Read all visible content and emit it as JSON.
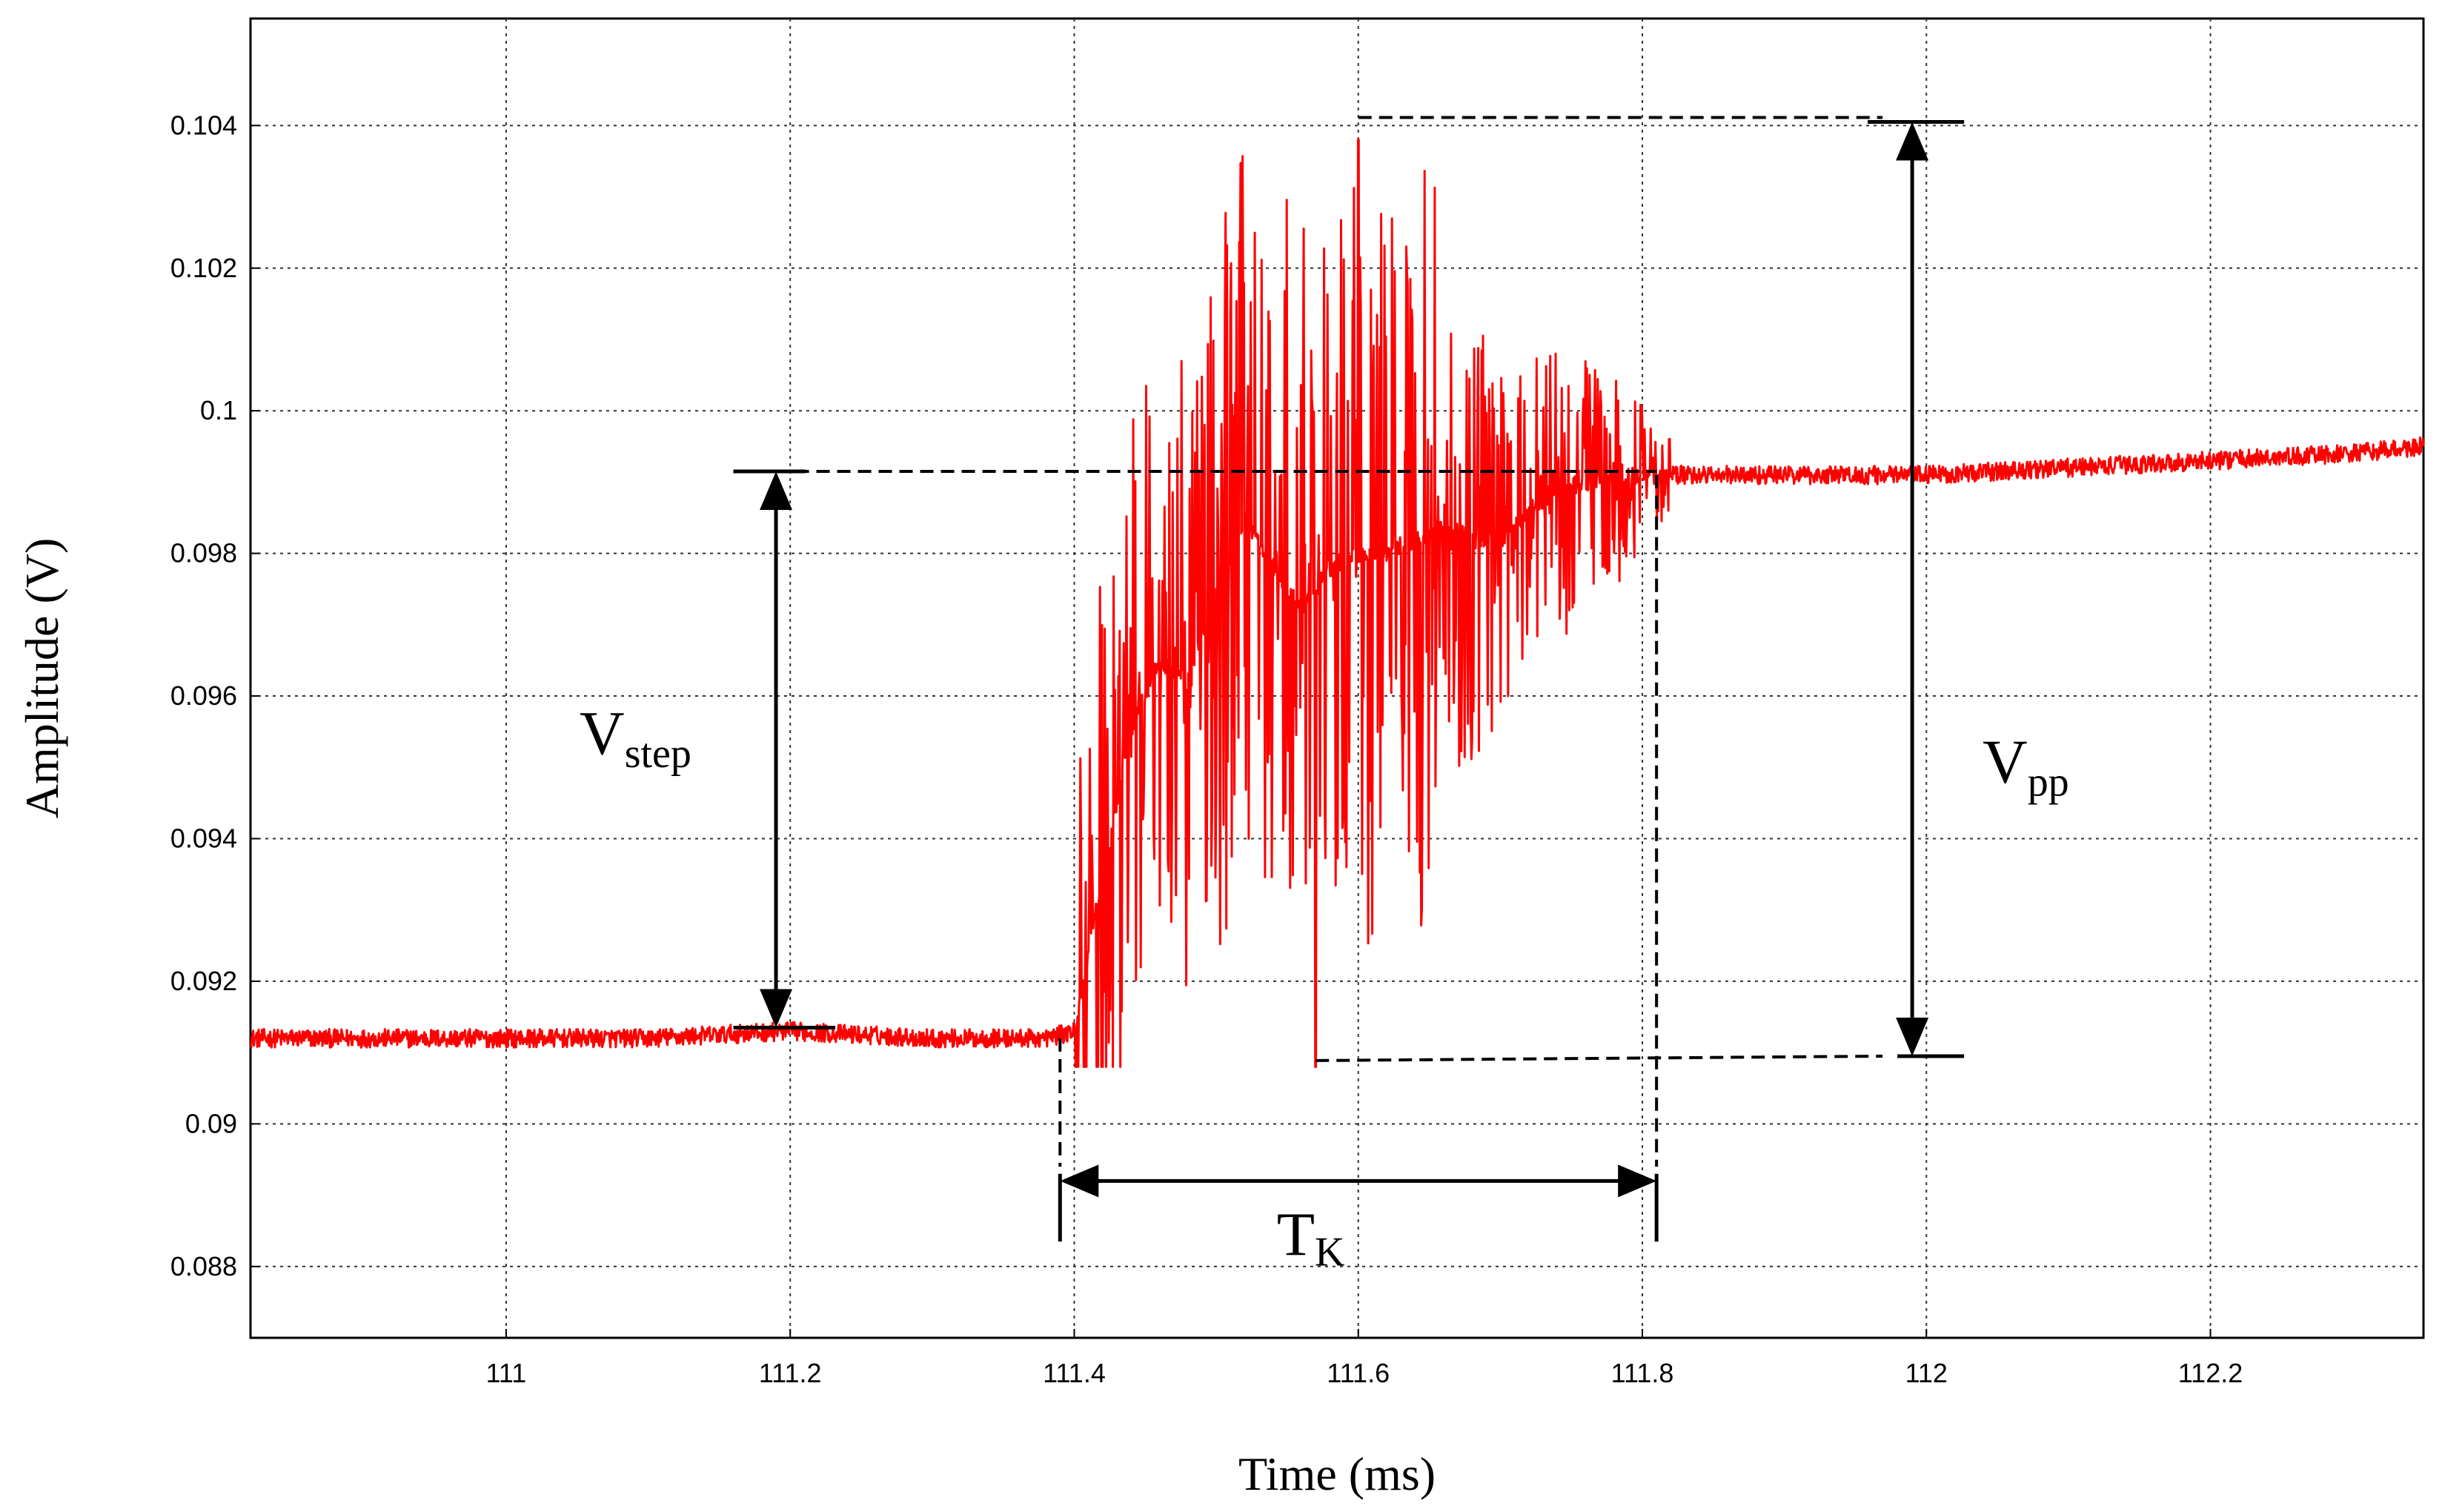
{
  "chart_data": {
    "type": "line",
    "title": "",
    "xlabel": "Time (ms)",
    "ylabel": "Amplitude (V)",
    "xlim": [
      110.82,
      112.35
    ],
    "ylim": [
      0.087,
      0.1055
    ],
    "grid": true,
    "x_ticks": [
      "111",
      "111.2",
      "111.4",
      "111.6",
      "111.8",
      "112",
      "112.2"
    ],
    "x_tick_values": [
      111,
      111.2,
      111.4,
      111.6,
      111.8,
      112,
      112.2
    ],
    "y_ticks": [
      "0.088",
      "0.09",
      "0.092",
      "0.094",
      "0.096",
      "0.098",
      "0.1",
      "0.102",
      "0.104"
    ],
    "y_tick_values": [
      0.088,
      0.09,
      0.092,
      0.094,
      0.096,
      0.098,
      0.1,
      0.102,
      0.104
    ],
    "series": [
      {
        "color": "#ff0000",
        "description_points": {
          "x": [
            110.82,
            110.9,
            111.0,
            111.1,
            111.2,
            111.3,
            111.38,
            111.4,
            111.42,
            111.44,
            111.46,
            111.48,
            111.5,
            111.52,
            111.54,
            111.56,
            111.58,
            111.6,
            111.62,
            111.64,
            111.66,
            111.68,
            111.7,
            111.72,
            111.74,
            111.76,
            111.8,
            111.85,
            111.9,
            112.0,
            112.1,
            112.2,
            112.3,
            112.35
          ],
          "y": [
            0.0912,
            0.0912,
            0.0912,
            0.0912,
            0.0913,
            0.0912,
            0.0912,
            0.0913,
            0.0935,
            0.0955,
            0.0965,
            0.0962,
            0.0975,
            0.0985,
            0.0978,
            0.0972,
            0.0978,
            0.098,
            0.098,
            0.0982,
            0.0984,
            0.0982,
            0.0982,
            0.0986,
            0.0989,
            0.099,
            0.0991,
            0.0991,
            0.0991,
            0.0991,
            0.0992,
            0.0993,
            0.0994,
            0.0995
          ]
        },
        "noise_envelope": {
          "max_value": 0.1038,
          "max_at": 111.6,
          "min_value": 0.0908,
          "min_at": 111.57
        }
      }
    ],
    "annotations": {
      "v_step": {
        "main": "V",
        "sub": "step",
        "x": 111.19,
        "y_top": 0.09915,
        "y_bottom": 0.09135
      },
      "v_pp": {
        "main": "V",
        "sub": "pp",
        "x": 111.99,
        "y_top": 0.10405,
        "y_bottom": 0.09095
      },
      "t_k": {
        "main": "T",
        "sub": "K",
        "y": 0.0892,
        "x_start": 111.39,
        "x_end": 111.81
      }
    }
  }
}
